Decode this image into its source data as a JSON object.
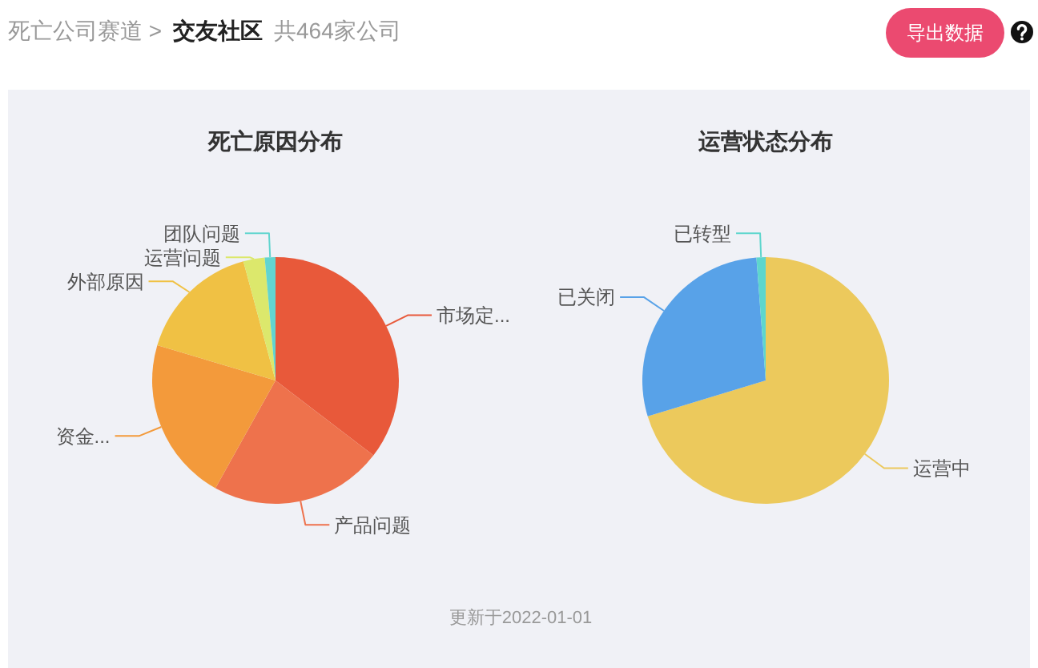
{
  "chart_data": [
    {
      "type": "pie",
      "title": "死亡原因分布",
      "categories": [
        "市场定...",
        "产品问题",
        "资金...",
        "外部原因",
        "运营问题",
        "团队问题"
      ],
      "values": [
        35.4,
        22.7,
        21.5,
        16.2,
        2.8,
        1.4
      ],
      "colors": [
        "#e8593a",
        "#ee724c",
        "#f39a3b",
        "#f0c144",
        "#dce86c",
        "#62d5cf"
      ],
      "annotations": [
        "死亡公司赛道 >",
        "交友社区",
        "共464家公司",
        "导出数据"
      ]
    },
    {
      "type": "pie",
      "title": "运营状态分布",
      "categories": [
        "运营中",
        "已关闭",
        "已转型"
      ],
      "values": [
        70.3,
        28.5,
        1.2
      ],
      "colors": [
        "#ecc95c",
        "#58a2e8",
        "#5ed6cd"
      ],
      "annotations": [
        "更新于2022-01-01"
      ]
    }
  ]
}
